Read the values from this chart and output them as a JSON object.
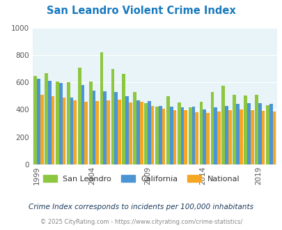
{
  "title": "San Leandro Violent Crime Index",
  "years": [
    1999,
    2000,
    2001,
    2002,
    2003,
    2004,
    2005,
    2006,
    2007,
    2008,
    2009,
    2010,
    2011,
    2012,
    2013,
    2014,
    2015,
    2016,
    2017,
    2018,
    2019,
    2020
  ],
  "san_leandro": [
    648,
    665,
    607,
    600,
    710,
    605,
    820,
    700,
    660,
    530,
    450,
    420,
    500,
    455,
    415,
    460,
    530,
    575,
    510,
    505,
    510,
    435
  ],
  "california": [
    625,
    610,
    595,
    490,
    580,
    540,
    535,
    530,
    500,
    470,
    465,
    430,
    420,
    415,
    420,
    400,
    415,
    430,
    445,
    450,
    450,
    445
  ],
  "national": [
    510,
    500,
    490,
    470,
    460,
    465,
    470,
    475,
    455,
    460,
    430,
    405,
    395,
    395,
    380,
    375,
    385,
    395,
    400,
    395,
    390,
    385
  ],
  "colors": {
    "san_leandro": "#8dc63f",
    "california": "#4d94d4",
    "national": "#f5a623"
  },
  "ylim": [
    0,
    1000
  ],
  "yticks": [
    0,
    200,
    400,
    600,
    800,
    1000
  ],
  "bg_color": "#e8f4f8",
  "subtitle": "Crime Index corresponds to incidents per 100,000 inhabitants",
  "footer": "© 2025 CityRating.com - https://www.cityrating.com/crime-statistics/",
  "title_color": "#1a7abf",
  "subtitle_color": "#1a3a5c",
  "footer_color": "#888888"
}
